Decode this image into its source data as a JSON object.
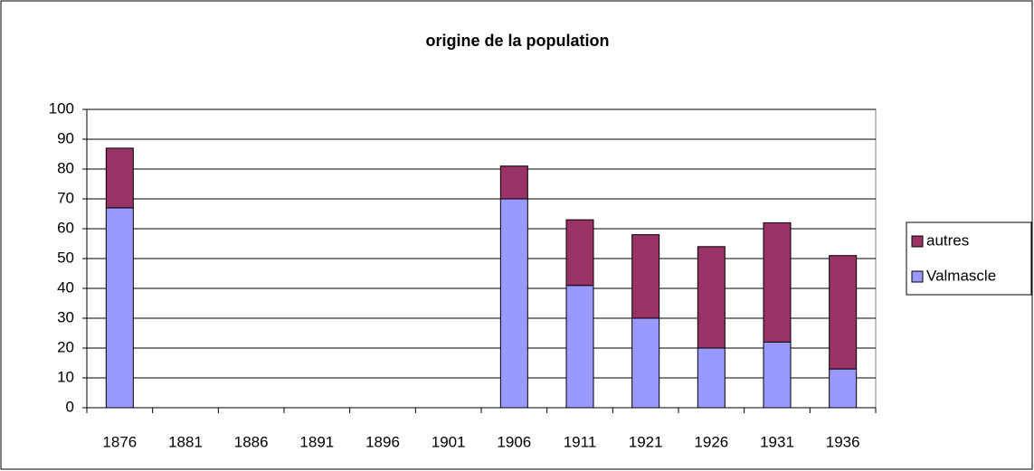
{
  "chart_data": {
    "type": "stacked-bar",
    "title": "origine de la population",
    "categories": [
      "1876",
      "1881",
      "1886",
      "1891",
      "1896",
      "1901",
      "1906",
      "1911",
      "1921",
      "1926",
      "1931",
      "1936"
    ],
    "series": [
      {
        "name": "Valmascle",
        "color": "#9999ff",
        "values": [
          67,
          null,
          null,
          null,
          null,
          null,
          70,
          41,
          30,
          20,
          22,
          13
        ]
      },
      {
        "name": "autres",
        "color": "#993366",
        "values": [
          20,
          null,
          null,
          null,
          null,
          null,
          11,
          22,
          28,
          34,
          40,
          38
        ]
      }
    ],
    "ylim": [
      0,
      100
    ],
    "yticks": [
      0,
      10,
      20,
      30,
      40,
      50,
      60,
      70,
      80,
      90,
      100
    ],
    "grid": true,
    "legend": "right"
  }
}
